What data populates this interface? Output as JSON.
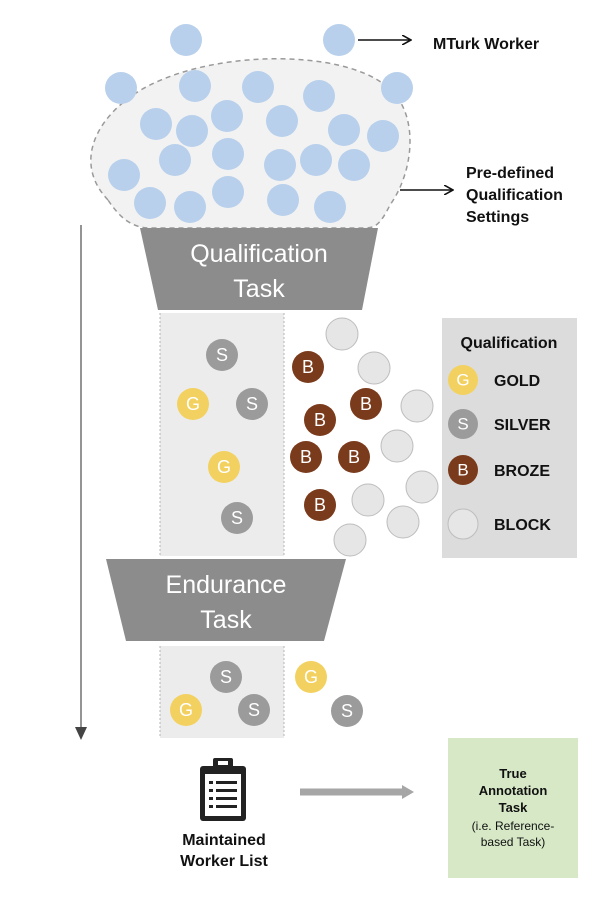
{
  "labels": {
    "mturk_worker": "MTurk Worker",
    "predefined_settings": [
      "Pre-defined",
      "Qualification",
      "Settings"
    ],
    "qualification_task": [
      "Qualification",
      "Task"
    ],
    "endurance_task": [
      "Endurance",
      "Task"
    ],
    "maintained_list": [
      "Maintained",
      "Worker List"
    ],
    "true_task": [
      "True",
      "Annotation",
      "Task"
    ],
    "true_task_note": [
      "(i.e. Reference-",
      "based Task)"
    ]
  },
  "legend": {
    "title": "Qualification",
    "items": [
      {
        "letter": "G",
        "label": "GOLD",
        "kind": "gold"
      },
      {
        "letter": "S",
        "label": "SILVER",
        "kind": "silver"
      },
      {
        "letter": "B",
        "label": "BROZE",
        "kind": "bronze"
      },
      {
        "letter": "",
        "label": "BLOCK",
        "kind": "block"
      }
    ]
  },
  "badge_letters": {
    "gold": "G",
    "silver": "S",
    "bronze": "B"
  },
  "colors": {
    "worker_blue": "#b8d0ec",
    "funnel_gray": "#8c8c8c",
    "column_gray": "#ececec",
    "gold": "#f3d160",
    "silver": "#9b9b9b",
    "bronze": "#7a3b1c",
    "block": "#e6e6e6",
    "legend_bg": "#dcdcdc",
    "true_task_bg": "#d6e8c6",
    "arrow_gray": "#a6a6a6"
  }
}
